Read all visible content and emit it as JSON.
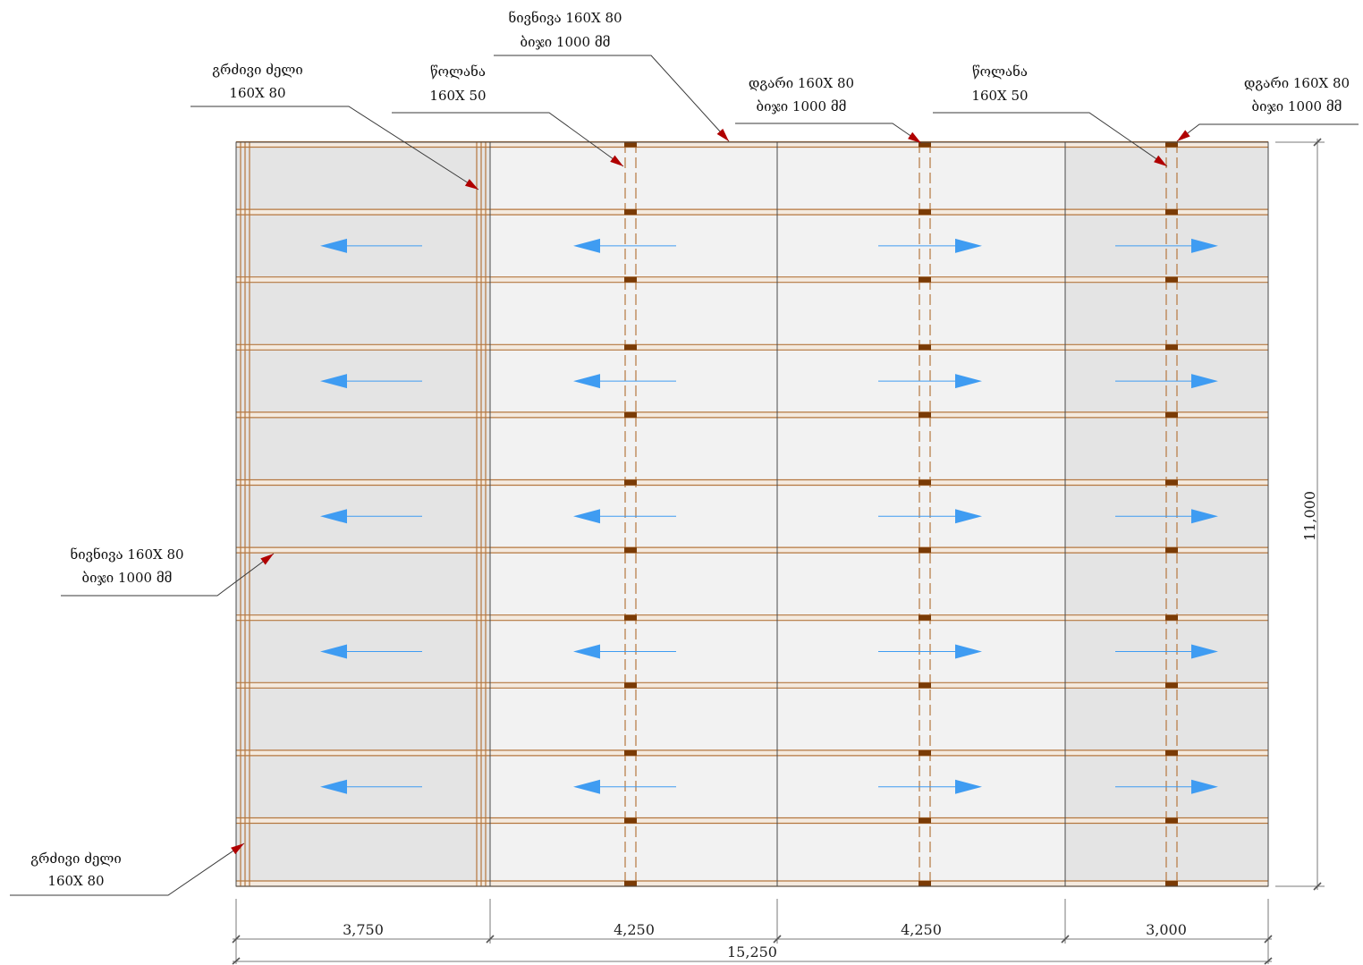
{
  "callouts": [
    {
      "line1": "გრძივი ძელი",
      "line2": "160X 80"
    },
    {
      "line1": "ნივნივა 160X 80",
      "line2": "ბიჯი 1000 მმ"
    },
    {
      "line1": "წოლანა",
      "line2": "160X 50"
    },
    {
      "line1": "დგარი 160X 80",
      "line2": "ბიჯი 1000 მმ"
    },
    {
      "line1": "წოლანა",
      "line2": "160X 50"
    },
    {
      "line1": "დგარი 160X 80",
      "line2": "ბიჯი 1000 მმ"
    },
    {
      "line1": "ნივნივა 160X 80",
      "line2": "ბიჯი 1000 მმ"
    },
    {
      "line1": "გრძივი ძელი",
      "line2": "160X 80"
    }
  ],
  "dimensions": {
    "bays": [
      "3,750",
      "4,250",
      "4,250",
      "3,000"
    ],
    "total_width": "15,250",
    "total_height": "11,000"
  },
  "flow_arrows": {
    "bay_directions": [
      "left",
      "left",
      "right",
      "right"
    ]
  },
  "colors": {
    "outer_bay_fill": "#e4e4e4",
    "inner_bay_fill": "#f2f2f2",
    "timber": "#b5773f",
    "post_block": "#7a3b06",
    "flow_arrow": "#3f9cf2",
    "leader_arrowhead": "#b00000",
    "outline": "#4a4a4a",
    "dimension": "#7a7a7a"
  }
}
